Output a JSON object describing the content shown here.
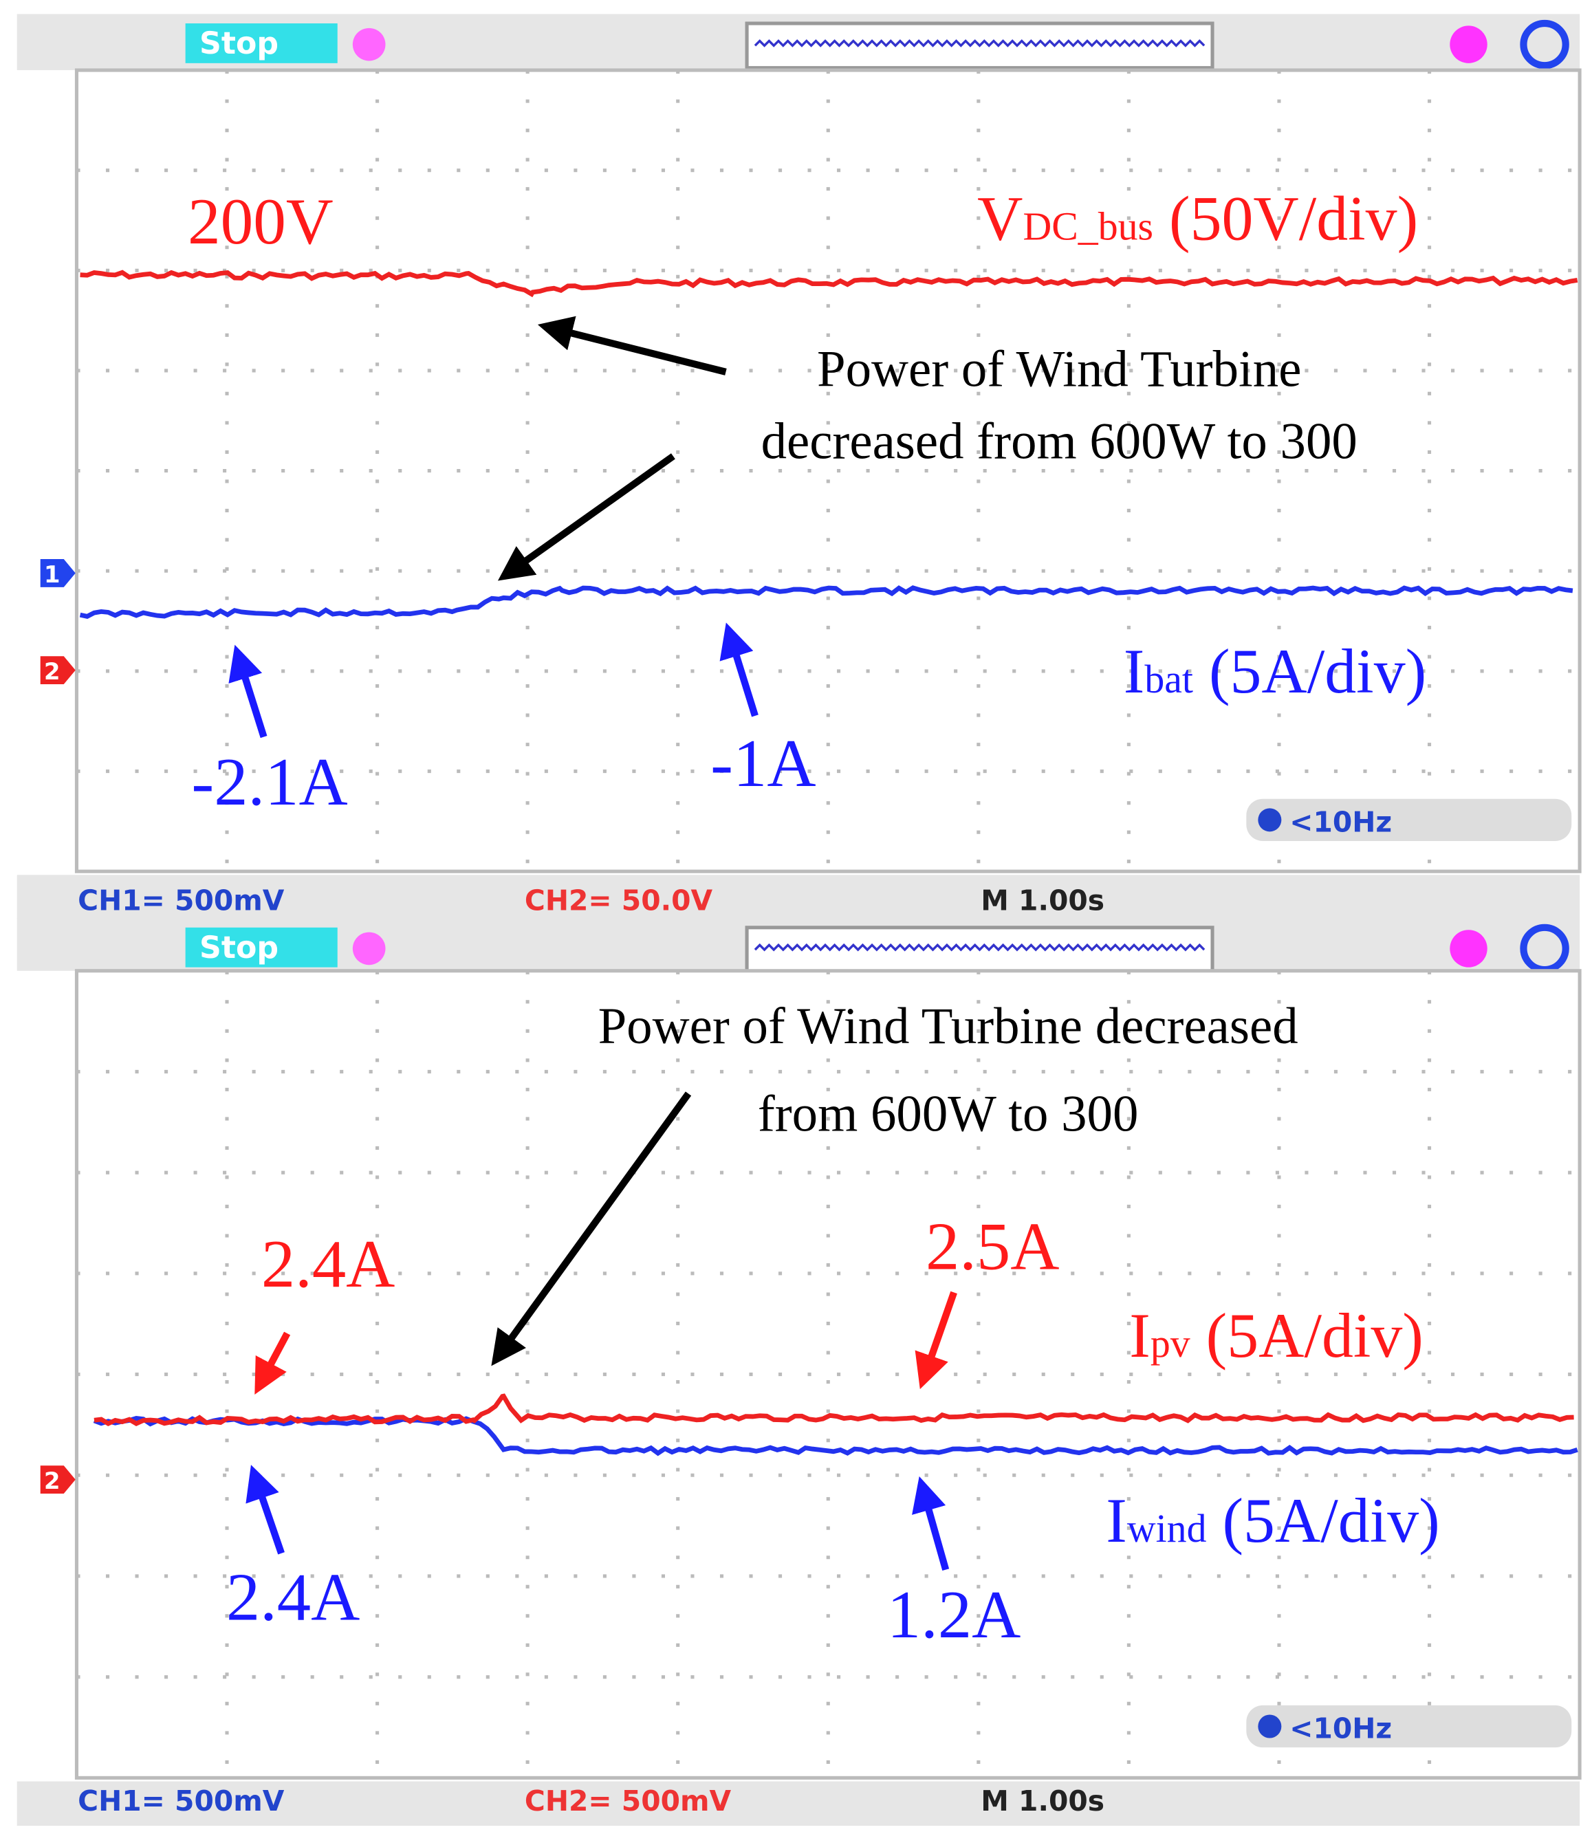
{
  "panels": [
    {
      "status": "Stop",
      "readouts": {
        "ch1": "CH1= 500mV",
        "ch2": "CH2= 50.0V",
        "time": "M 1.00s",
        "trigger": "<10Hz"
      },
      "markers": [
        "1",
        "2"
      ],
      "annotations": {
        "level": "200V",
        "vdc_label": {
          "main": "V",
          "sub": "DC_bus",
          "scale": " (50V/div)"
        },
        "note": [
          "Power of Wind Turbine",
          "decreased from 600W to 300"
        ],
        "ibat_before": "-2.1A",
        "ibat_after": "-1A",
        "ibat_label": {
          "main": "I",
          "sub": "bat",
          "scale": " (5A/div)"
        }
      }
    },
    {
      "status": "Stop",
      "readouts": {
        "ch1": "CH1= 500mV",
        "ch2": "CH2= 500mV",
        "time": "M 1.00s",
        "trigger": "<10Hz"
      },
      "markers": [
        "2"
      ],
      "annotations": {
        "note": [
          "Power of Wind Turbine decreased",
          "from 600W to 300"
        ],
        "ipv_before": "2.4A",
        "ipv_after": "2.5A",
        "ipv_label": {
          "main": "I",
          "sub": "pv",
          "scale": " (5A/div)"
        },
        "iwind_before": "2.4A",
        "iwind_after": "1.2A",
        "iwind_label": {
          "main": "I",
          "sub": "wind",
          "scale": " (5A/div)"
        }
      }
    }
  ]
}
